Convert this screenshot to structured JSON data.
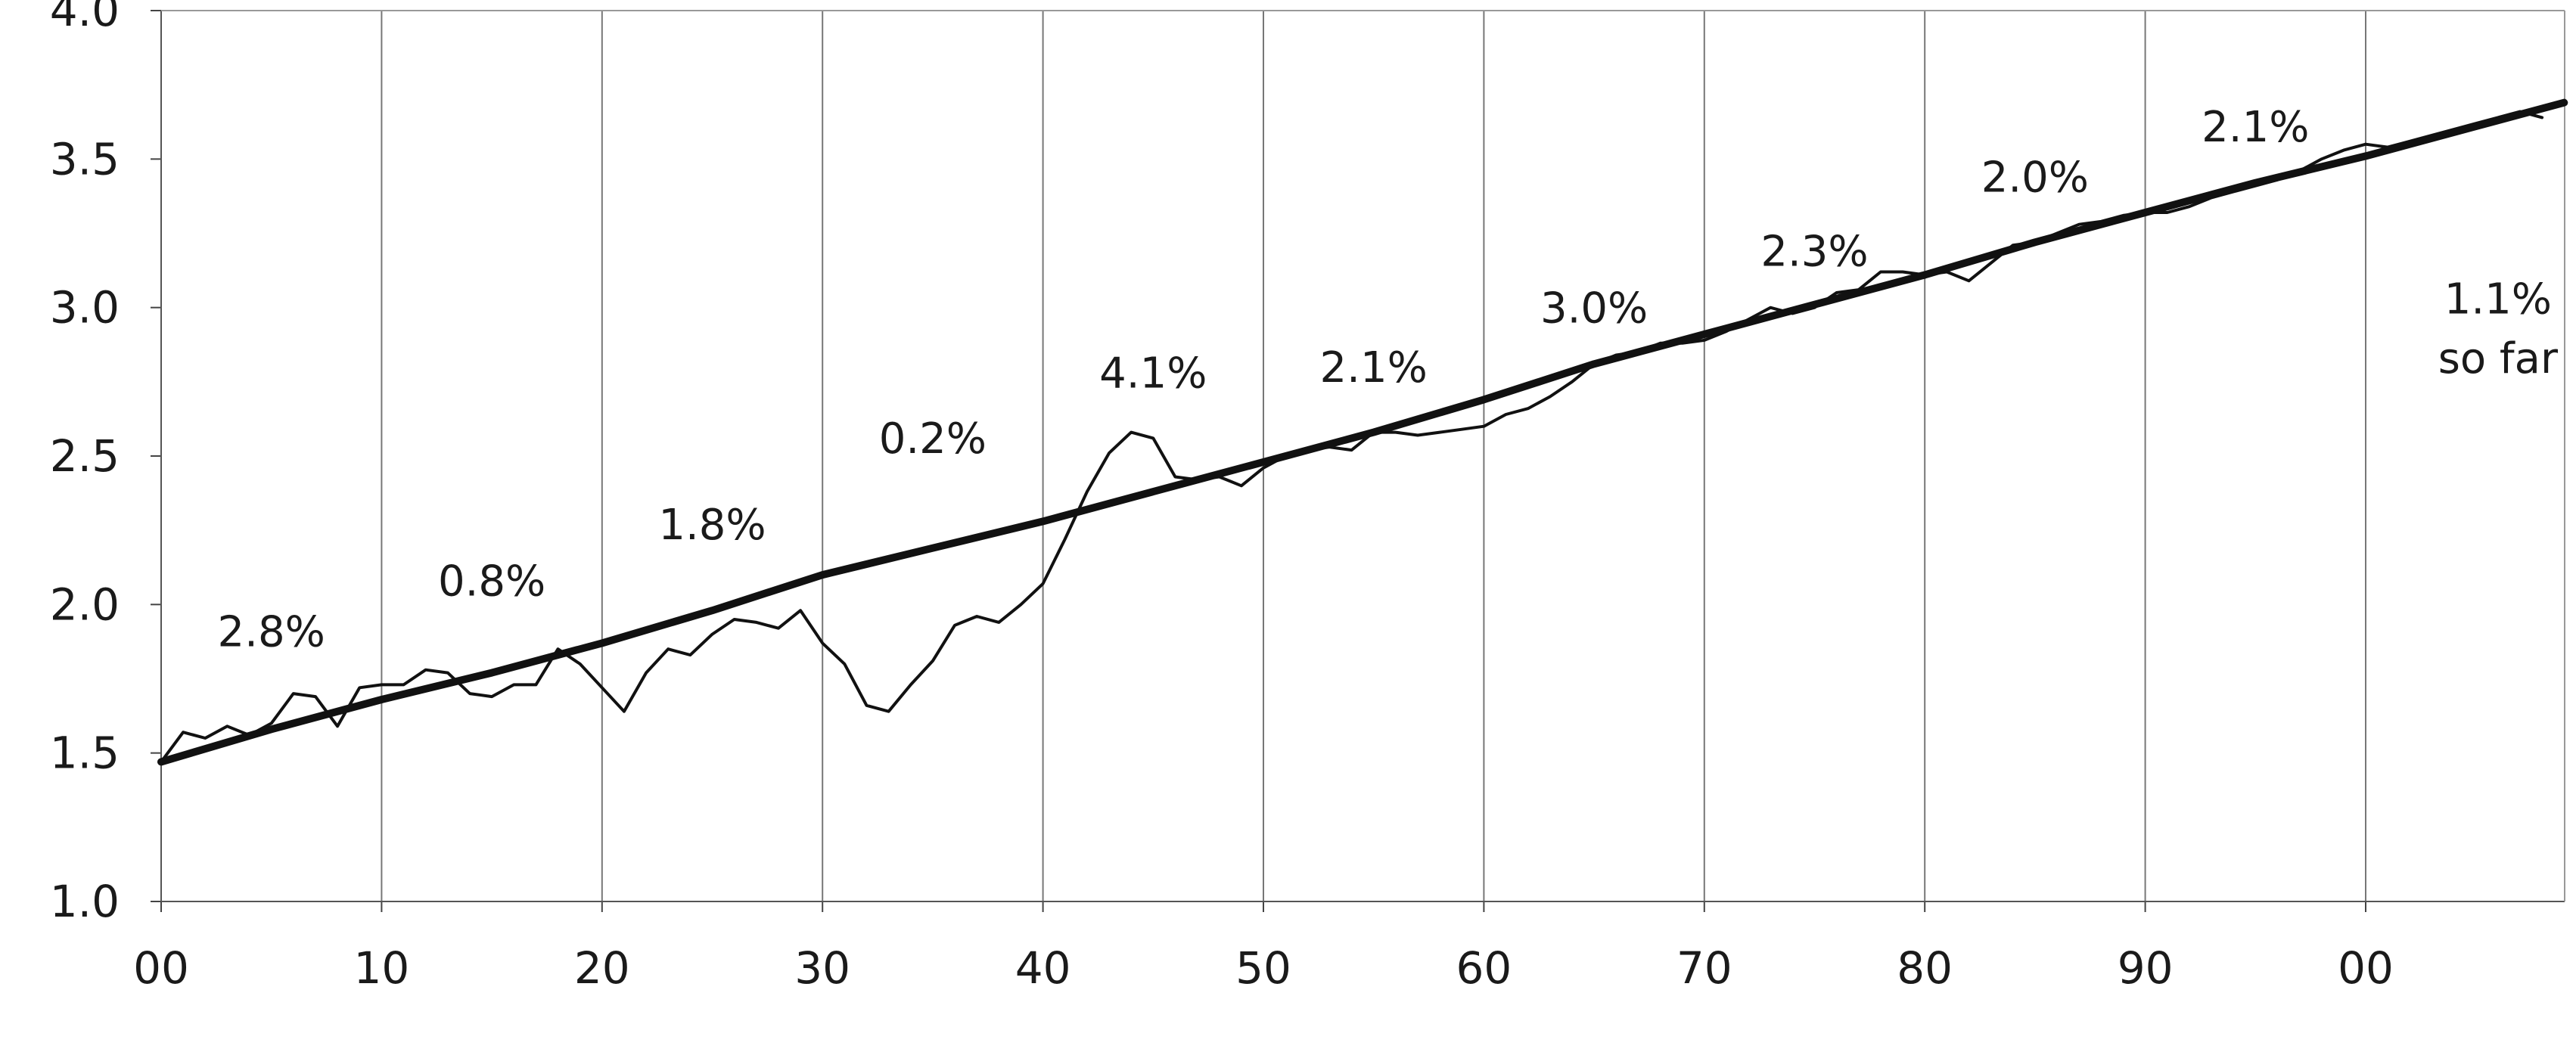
{
  "chart_data": {
    "type": "line",
    "title": "",
    "xlabel": "",
    "ylabel": "",
    "xlim": [
      1900,
      2009
    ],
    "ylim": [
      1.0,
      4.0
    ],
    "grid": {
      "vertical": true,
      "horizontal": false
    },
    "legend": "none",
    "x_ticks": [
      {
        "value": 1900,
        "label": "00"
      },
      {
        "value": 1910,
        "label": "10"
      },
      {
        "value": 1920,
        "label": "20"
      },
      {
        "value": 1930,
        "label": "30"
      },
      {
        "value": 1940,
        "label": "40"
      },
      {
        "value": 1950,
        "label": "50"
      },
      {
        "value": 1960,
        "label": "60"
      },
      {
        "value": 1970,
        "label": "70"
      },
      {
        "value": 1980,
        "label": "80"
      },
      {
        "value": 1990,
        "label": "90"
      },
      {
        "value": 2000,
        "label": "00"
      }
    ],
    "y_ticks": [
      {
        "value": 1.0,
        "label": "1.0"
      },
      {
        "value": 1.5,
        "label": "1.5"
      },
      {
        "value": 2.0,
        "label": "2.0"
      },
      {
        "value": 2.5,
        "label": "2.5"
      },
      {
        "value": 3.0,
        "label": "3.0"
      },
      {
        "value": 3.5,
        "label": "3.5"
      },
      {
        "value": 4.0,
        "label": "4.0"
      }
    ],
    "series": [
      {
        "style": "thin",
        "x": [
          1900,
          1901,
          1902,
          1903,
          1904,
          1905,
          1906,
          1907,
          1908,
          1909,
          1910,
          1911,
          1912,
          1913,
          1914,
          1915,
          1916,
          1917,
          1918,
          1919,
          1920,
          1921,
          1922,
          1923,
          1924,
          1925,
          1926,
          1927,
          1928,
          1929,
          1930,
          1931,
          1932,
          1933,
          1934,
          1935,
          1936,
          1937,
          1938,
          1939,
          1940,
          1941,
          1942,
          1943,
          1944,
          1945,
          1946,
          1947,
          1948,
          1949,
          1950,
          1951,
          1952,
          1953,
          1954,
          1955,
          1956,
          1957,
          1958,
          1959,
          1960,
          1961,
          1962,
          1963,
          1964,
          1965,
          1966,
          1967,
          1968,
          1969,
          1970,
          1971,
          1972,
          1973,
          1974,
          1975,
          1976,
          1977,
          1978,
          1979,
          1980,
          1981,
          1982,
          1983,
          1984,
          1985,
          1986,
          1987,
          1988,
          1989,
          1990,
          1991,
          1992,
          1993,
          1994,
          1995,
          1996,
          1997,
          1998,
          1999,
          2000,
          2001,
          2002,
          2003,
          2004,
          2005,
          2006,
          2007,
          2008
        ],
        "y": [
          1.47,
          1.57,
          1.55,
          1.59,
          1.56,
          1.6,
          1.7,
          1.69,
          1.59,
          1.72,
          1.73,
          1.73,
          1.78,
          1.77,
          1.7,
          1.69,
          1.73,
          1.73,
          1.85,
          1.8,
          1.72,
          1.64,
          1.77,
          1.85,
          1.83,
          1.9,
          1.95,
          1.94,
          1.92,
          1.98,
          1.87,
          1.8,
          1.66,
          1.64,
          1.73,
          1.81,
          1.93,
          1.96,
          1.94,
          2.0,
          2.07,
          2.22,
          2.38,
          2.51,
          2.58,
          2.56,
          2.43,
          2.42,
          2.43,
          2.4,
          2.46,
          2.5,
          2.52,
          2.53,
          2.52,
          2.58,
          2.58,
          2.57,
          2.58,
          2.59,
          2.6,
          2.64,
          2.66,
          2.7,
          2.75,
          2.81,
          2.84,
          2.85,
          2.88,
          2.88,
          2.89,
          2.92,
          2.96,
          3.0,
          2.98,
          3.0,
          3.05,
          3.06,
          3.12,
          3.12,
          3.11,
          3.12,
          3.09,
          3.15,
          3.21,
          3.22,
          3.25,
          3.28,
          3.29,
          3.31,
          3.32,
          3.32,
          3.34,
          3.37,
          3.39,
          3.41,
          3.43,
          3.46,
          3.5,
          3.53,
          3.55,
          3.54,
          3.56,
          3.58,
          3.6,
          3.62,
          3.64,
          3.66,
          3.64
        ]
      },
      {
        "style": "thick",
        "x": [
          1900,
          1905,
          1910,
          1915,
          1920,
          1925,
          1930,
          1935,
          1940,
          1945,
          1950,
          1955,
          1960,
          1965,
          1970,
          1975,
          1980,
          1985,
          1990,
          1995,
          2000,
          2005,
          2009
        ],
        "y": [
          1.47,
          1.58,
          1.68,
          1.77,
          1.87,
          1.98,
          2.1,
          2.19,
          2.28,
          2.38,
          2.48,
          2.58,
          2.69,
          2.81,
          2.91,
          3.01,
          3.11,
          3.22,
          3.32,
          3.42,
          3.51,
          3.61,
          3.69
        ]
      }
    ],
    "annotations": [
      {
        "text": "2.8%",
        "x": 1905,
        "y": 1.86
      },
      {
        "text": "0.8%",
        "x": 1915,
        "y": 2.03
      },
      {
        "text": "1.8%",
        "x": 1925,
        "y": 2.22
      },
      {
        "text": "0.2%",
        "x": 1935,
        "y": 2.51
      },
      {
        "text": "4.1%",
        "x": 1945,
        "y": 2.73
      },
      {
        "text": "2.1%",
        "x": 1955,
        "y": 2.75
      },
      {
        "text": "3.0%",
        "x": 1965,
        "y": 2.95
      },
      {
        "text": "2.3%",
        "x": 1975,
        "y": 3.14
      },
      {
        "text": "2.0%",
        "x": 1985,
        "y": 3.39
      },
      {
        "text": "2.1%",
        "x": 1995,
        "y": 3.56
      },
      {
        "text": "1.1%",
        "x": 2006,
        "y": 2.98
      },
      {
        "text": "so far",
        "x": 2006,
        "y": 2.78
      }
    ]
  }
}
